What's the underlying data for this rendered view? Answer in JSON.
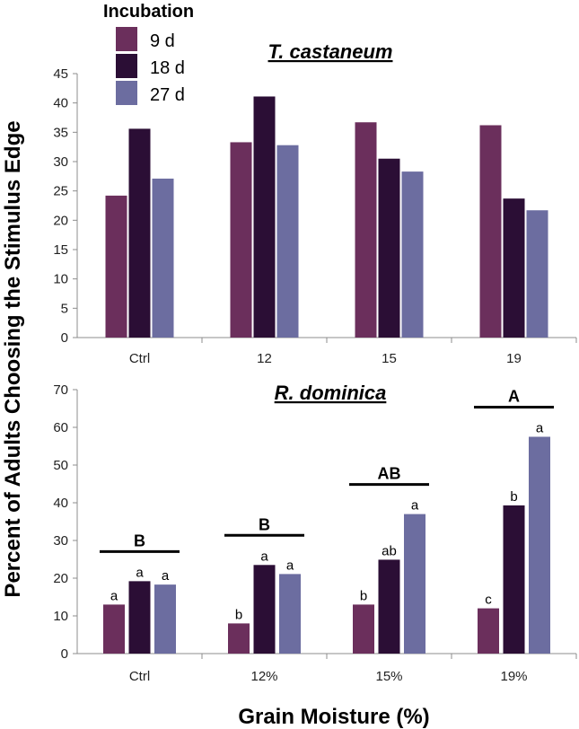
{
  "xlabel": "Grain Moisture (%)",
  "ylabel": "Percent of Adults Choosing the Stimulus Edge",
  "legend": {
    "title": "Incubation",
    "entries": [
      {
        "label": "9 d",
        "color": "#6b2f5c"
      },
      {
        "label": "18 d",
        "color": "#2b0e35"
      },
      {
        "label": "27 d",
        "color": "#6c6da0"
      }
    ]
  },
  "chart_data": [
    {
      "type": "bar",
      "title": "T. castaneum",
      "categories": [
        "Ctrl",
        "12",
        "15",
        "19"
      ],
      "ylim": [
        0,
        45
      ],
      "yticks": [
        0,
        5,
        10,
        15,
        20,
        25,
        30,
        35,
        40,
        45
      ],
      "series": [
        {
          "name": "9 d",
          "values": [
            24.2,
            33.3,
            36.7,
            36.2
          ]
        },
        {
          "name": "18 d",
          "values": [
            35.6,
            41.1,
            30.5,
            23.7
          ]
        },
        {
          "name": "27 d",
          "values": [
            27.1,
            32.8,
            28.3,
            21.7
          ]
        }
      ]
    },
    {
      "type": "bar",
      "title": "R. dominica",
      "categories": [
        "Ctrl",
        "12%",
        "15%",
        "19%"
      ],
      "ylim": [
        0,
        70
      ],
      "yticks": [
        0,
        10,
        20,
        30,
        40,
        50,
        60,
        70
      ],
      "series": [
        {
          "name": "9 d",
          "values": [
            13.0,
            8.0,
            13.0,
            12.0
          ],
          "letters": [
            "a",
            "b",
            "b",
            "c"
          ]
        },
        {
          "name": "18 d",
          "values": [
            19.2,
            23.5,
            24.9,
            39.3
          ],
          "letters": [
            "a",
            "a",
            "ab",
            "b"
          ]
        },
        {
          "name": "27 d",
          "values": [
            18.3,
            21.1,
            37.0,
            57.5
          ],
          "letters": [
            "a",
            "a",
            "a",
            "a"
          ]
        }
      ],
      "group_letters": [
        "B",
        "B",
        "AB",
        "A"
      ]
    }
  ]
}
